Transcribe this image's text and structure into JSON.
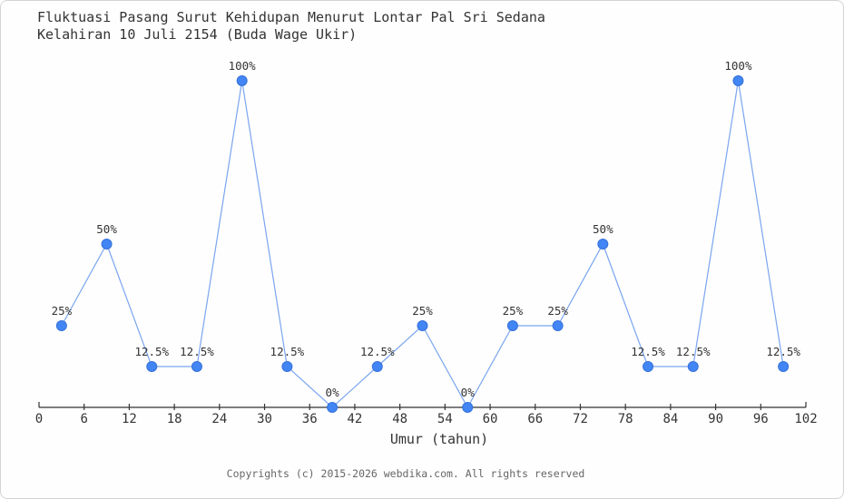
{
  "title": {
    "line1": "Fluktuasi Pasang Surut Kehidupan Menurut Lontar Pal Sri Sedana",
    "line2": "Kelahiran 10 Juli 2154 (Buda Wage Ukir)"
  },
  "footer": "Copyrights (c) 2015-2026 webdika.com. All rights reserved",
  "chart_data": {
    "type": "line",
    "title": "Fluktuasi Pasang Surut Kehidupan Menurut Lontar Pal Sri Sedana Kelahiran 10 Juli 2154 (Buda Wage Ukir)",
    "xlabel": "Umur (tahun)",
    "ylabel": "",
    "x": [
      3,
      9,
      15,
      21,
      27,
      33,
      39,
      45,
      51,
      57,
      63,
      69,
      75,
      81,
      87,
      93,
      99
    ],
    "values": [
      25,
      50,
      12.5,
      12.5,
      100,
      12.5,
      0,
      12.5,
      25,
      0,
      25,
      25,
      50,
      12.5,
      12.5,
      100,
      12.5
    ],
    "point_labels": [
      "25%",
      "50%",
      "12.5%",
      "12.5%",
      "100%",
      "12.5%",
      "0%",
      "12.5%",
      "25%",
      "0%",
      "25%",
      "25%",
      "50%",
      "12.5%",
      "12.5%",
      "100%",
      "12.5%"
    ],
    "x_ticks": [
      0,
      6,
      12,
      18,
      24,
      30,
      36,
      42,
      48,
      54,
      60,
      66,
      72,
      78,
      84,
      90,
      96,
      102
    ],
    "xlim": [
      0,
      102
    ],
    "ylim": [
      0,
      100
    ],
    "grid": false,
    "legend": "none",
    "colors": {
      "line": "#7aa5ef",
      "marker_fill": "#4285f4",
      "marker_stroke": "#3672d9",
      "axis": "#333333",
      "text": "#333333",
      "footer_text": "#666666"
    }
  }
}
